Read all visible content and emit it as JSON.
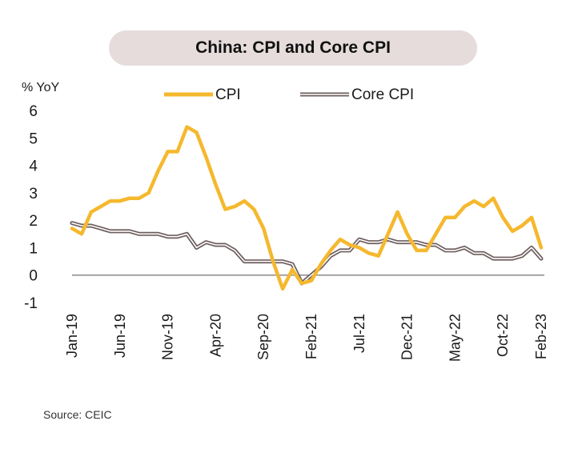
{
  "chart_data": {
    "type": "line",
    "title": "China: CPI and Core CPI",
    "ylabel": "% YoY",
    "xlabel": "",
    "ylim": [
      -1,
      6
    ],
    "yticks": [
      -1,
      0,
      1,
      2,
      3,
      4,
      5,
      6
    ],
    "x_tick_labels": [
      "Jan-19",
      "Jun-19",
      "Nov-19",
      "Apr-20",
      "Sep-20",
      "Feb-21",
      "Jul-21",
      "Dec-21",
      "May-22",
      "Oct-22",
      "Feb-23"
    ],
    "x_tick_index": [
      0,
      5,
      10,
      15,
      20,
      25,
      30,
      35,
      40,
      45,
      49
    ],
    "legend": "top",
    "grid": false,
    "source": "Source: CEIC",
    "colors": {
      "CPI": "#f5b82e",
      "Core CPI_outer": "#6e5e5e",
      "Core CPI_inner": "#ffffff",
      "zero_line": "#888888"
    },
    "x": [
      "Jan-19",
      "Feb-19",
      "Mar-19",
      "Apr-19",
      "May-19",
      "Jun-19",
      "Jul-19",
      "Aug-19",
      "Sep-19",
      "Oct-19",
      "Nov-19",
      "Dec-19",
      "Jan-20",
      "Feb-20",
      "Mar-20",
      "Apr-20",
      "May-20",
      "Jun-20",
      "Jul-20",
      "Aug-20",
      "Sep-20",
      "Oct-20",
      "Nov-20",
      "Dec-20",
      "Jan-21",
      "Feb-21",
      "Mar-21",
      "Apr-21",
      "May-21",
      "Jun-21",
      "Jul-21",
      "Aug-21",
      "Sep-21",
      "Oct-21",
      "Nov-21",
      "Dec-21",
      "Jan-22",
      "Feb-22",
      "Mar-22",
      "Apr-22",
      "May-22",
      "Jun-22",
      "Jul-22",
      "Aug-22",
      "Sep-22",
      "Oct-22",
      "Nov-22",
      "Dec-22",
      "Jan-23",
      "Feb-23"
    ],
    "series": [
      {
        "name": "CPI",
        "values": [
          1.7,
          1.5,
          2.3,
          2.5,
          2.7,
          2.7,
          2.8,
          2.8,
          3.0,
          3.8,
          4.5,
          4.5,
          5.4,
          5.2,
          4.3,
          3.3,
          2.4,
          2.5,
          2.7,
          2.4,
          1.7,
          0.5,
          -0.5,
          0.2,
          -0.3,
          -0.2,
          0.4,
          0.9,
          1.3,
          1.1,
          1.0,
          0.8,
          0.7,
          1.5,
          2.3,
          1.5,
          0.9,
          0.9,
          1.5,
          2.1,
          2.1,
          2.5,
          2.7,
          2.5,
          2.8,
          2.1,
          1.6,
          1.8,
          2.1,
          1.0
        ]
      },
      {
        "name": "Core CPI",
        "values": [
          1.9,
          1.8,
          1.8,
          1.7,
          1.6,
          1.6,
          1.6,
          1.5,
          1.5,
          1.5,
          1.4,
          1.4,
          1.5,
          1.0,
          1.2,
          1.1,
          1.1,
          0.9,
          0.5,
          0.5,
          0.5,
          0.5,
          0.5,
          0.4,
          -0.3,
          0.0,
          0.3,
          0.7,
          0.9,
          0.9,
          1.3,
          1.2,
          1.2,
          1.3,
          1.2,
          1.2,
          1.2,
          1.1,
          1.1,
          0.9,
          0.9,
          1.0,
          0.8,
          0.8,
          0.6,
          0.6,
          0.6,
          0.7,
          1.0,
          0.6
        ]
      }
    ]
  }
}
